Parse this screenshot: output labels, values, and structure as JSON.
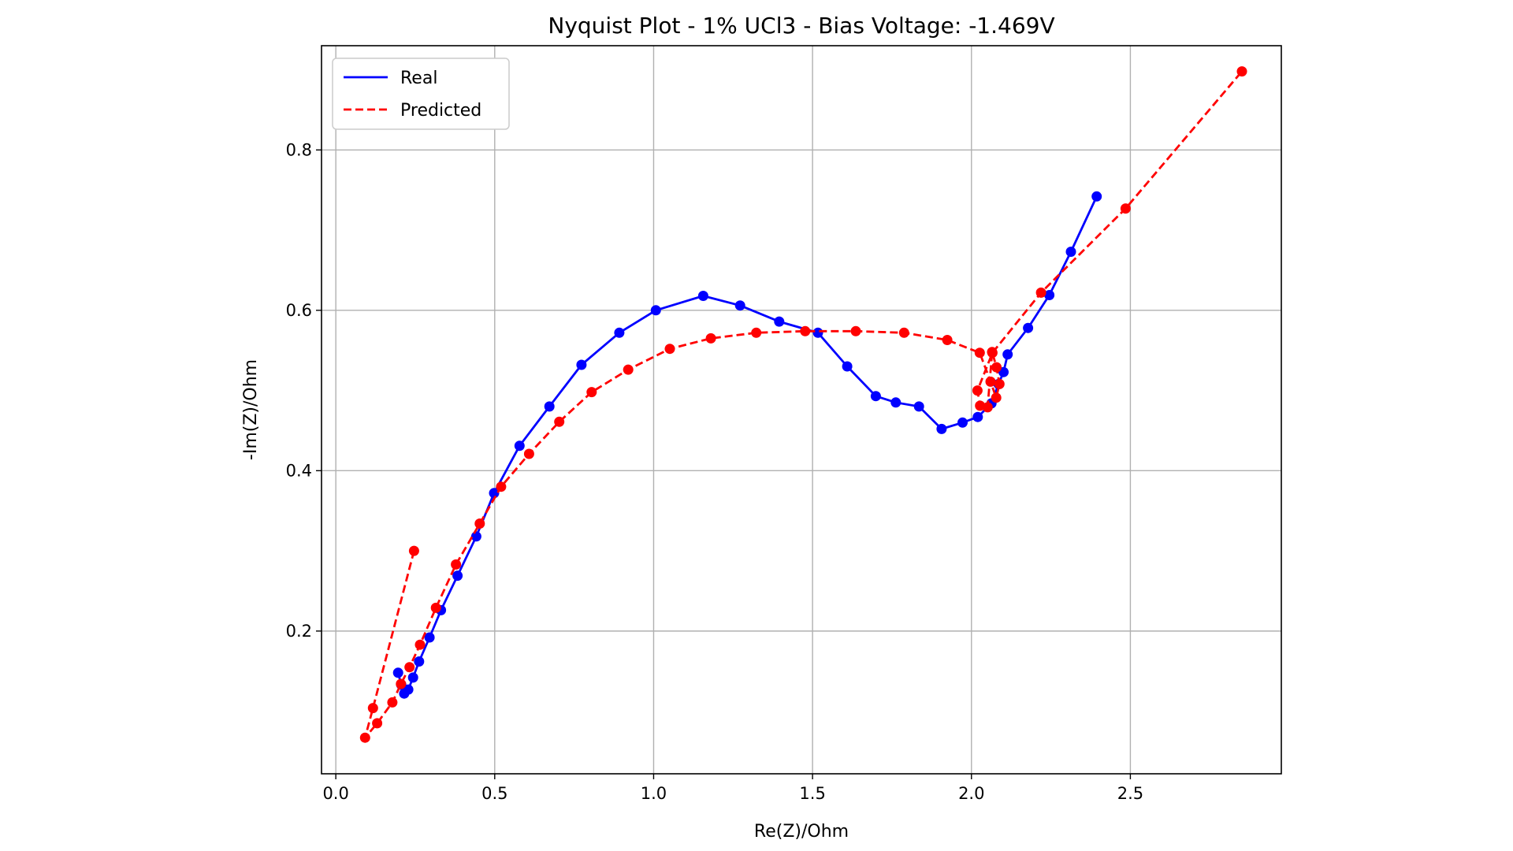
{
  "chart_data": {
    "type": "line",
    "title": "Nyquist Plot - 1% UCl3 - Bias Voltage: -1.469V",
    "xlabel": "Re(Z)/Ohm",
    "ylabel": "-Im(Z)/Ohm",
    "xlim": [
      -0.045,
      2.975
    ],
    "ylim": [
      0.022,
      0.93
    ],
    "xticks": [
      0.0,
      0.5,
      1.0,
      1.5,
      2.0,
      2.5
    ],
    "xtick_labels": [
      "0.0",
      "0.5",
      "1.0",
      "1.5",
      "2.0",
      "2.5"
    ],
    "yticks": [
      0.2,
      0.4,
      0.6,
      0.8
    ],
    "ytick_labels": [
      "0.2",
      "0.4",
      "0.6",
      "0.8"
    ],
    "grid": true,
    "legend_position": "top-left",
    "series": [
      {
        "name": "Real",
        "color": "#0000ff",
        "linestyle": "solid",
        "marker": "circle",
        "x": [
          0.196,
          0.206,
          0.215,
          0.228,
          0.243,
          0.262,
          0.295,
          0.331,
          0.383,
          0.442,
          0.498,
          0.578,
          0.672,
          0.773,
          0.892,
          1.007,
          1.156,
          1.272,
          1.395,
          1.517,
          1.609,
          1.699,
          1.762,
          1.835,
          1.906,
          1.972,
          2.02,
          2.063,
          2.085,
          2.101,
          2.114,
          2.178,
          2.245,
          2.313,
          2.394
        ],
        "y": [
          0.148,
          0.133,
          0.122,
          0.127,
          0.142,
          0.162,
          0.192,
          0.226,
          0.269,
          0.318,
          0.372,
          0.431,
          0.48,
          0.532,
          0.572,
          0.6,
          0.618,
          0.606,
          0.586,
          0.572,
          0.53,
          0.493,
          0.485,
          0.48,
          0.452,
          0.46,
          0.467,
          0.484,
          0.508,
          0.523,
          0.545,
          0.578,
          0.619,
          0.673,
          0.742
        ]
      },
      {
        "name": "Predicted",
        "color": "#ff0000",
        "linestyle": "dashed",
        "marker": "circle",
        "x": [
          0.246,
          0.117,
          0.092,
          0.13,
          0.178,
          0.205,
          0.232,
          0.265,
          0.315,
          0.378,
          0.453,
          0.52,
          0.608,
          0.703,
          0.805,
          0.92,
          1.051,
          1.18,
          1.323,
          1.477,
          1.636,
          1.788,
          1.924,
          2.026,
          2.06,
          2.078,
          2.088,
          2.079,
          2.065,
          2.051,
          2.027,
          2.019,
          2.066,
          2.219,
          2.485,
          2.851
        ],
        "y": [
          0.3,
          0.104,
          0.067,
          0.085,
          0.111,
          0.134,
          0.155,
          0.183,
          0.229,
          0.283,
          0.334,
          0.38,
          0.421,
          0.461,
          0.498,
          0.526,
          0.552,
          0.565,
          0.572,
          0.574,
          0.574,
          0.572,
          0.563,
          0.547,
          0.511,
          0.491,
          0.508,
          0.529,
          0.548,
          0.479,
          0.481,
          0.5,
          0.547,
          0.622,
          0.727,
          0.898
        ]
      }
    ]
  }
}
